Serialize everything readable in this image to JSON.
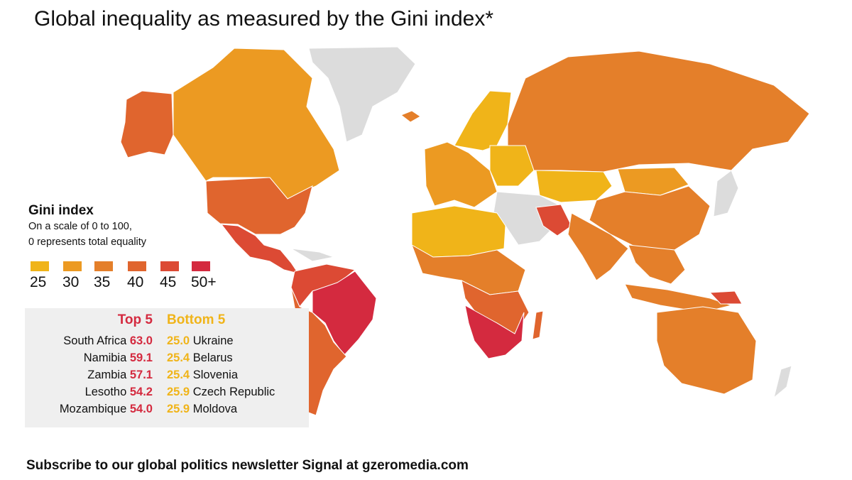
{
  "title": "Global inequality as measured by the Gini index*",
  "legend": {
    "title": "Gini index",
    "subtitle_line1": "On a scale of 0 to 100,",
    "subtitle_line2": "0 represents total equality",
    "bins": [
      {
        "label": "25",
        "color": "#f0b419"
      },
      {
        "label": "30",
        "color": "#ec9a22"
      },
      {
        "label": "35",
        "color": "#e47f2a"
      },
      {
        "label": "40",
        "color": "#e0652e"
      },
      {
        "label": "45",
        "color": "#dc4a34"
      },
      {
        "label": "50+",
        "color": "#d42a3f"
      }
    ],
    "no_data_color": "#dcdcdc"
  },
  "top5": {
    "heading": "Top 5",
    "color": "#d42a3f",
    "items": [
      {
        "country": "South Africa",
        "value": "63.0"
      },
      {
        "country": "Namibia",
        "value": "59.1"
      },
      {
        "country": "Zambia",
        "value": "57.1"
      },
      {
        "country": "Lesotho",
        "value": "54.2"
      },
      {
        "country": "Mozambique",
        "value": "54.0"
      }
    ]
  },
  "bottom5": {
    "heading": "Bottom 5",
    "color": "#f0b419",
    "items": [
      {
        "country": "Ukraine",
        "value": "25.0"
      },
      {
        "country": "Belarus",
        "value": "25.4"
      },
      {
        "country": "Slovenia",
        "value": "25.4"
      },
      {
        "country": "Czech Republic",
        "value": "25.9"
      },
      {
        "country": "Moldova",
        "value": "25.9"
      }
    ]
  },
  "footer": "Subscribe to our global politics newsletter Signal at gzeromedia.com"
}
